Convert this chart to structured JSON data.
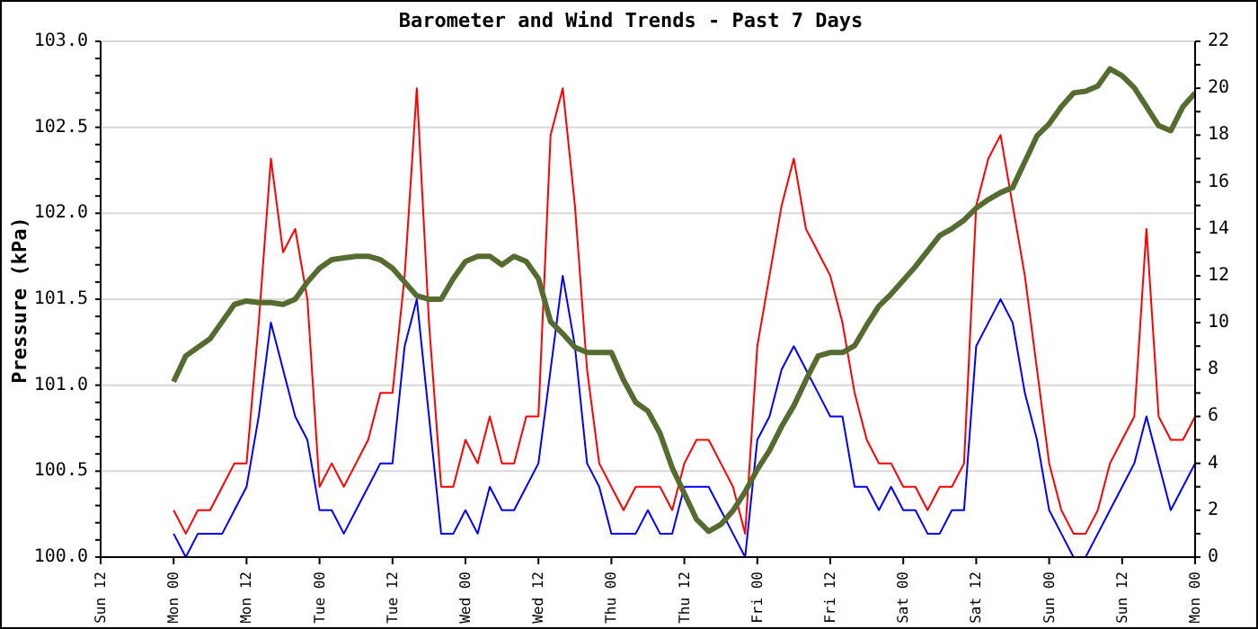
{
  "chart_data": {
    "type": "line",
    "title": "Barometer and Wind Trends - Past 7 Days",
    "ylabel": "Pressure (kPa)",
    "categories": [
      "Sun 12",
      null,
      null,
      null,
      null,
      null,
      "Mon 00",
      null,
      null,
      null,
      null,
      null,
      "Mon 12",
      null,
      null,
      null,
      null,
      null,
      "Tue 00",
      null,
      null,
      null,
      null,
      null,
      "Tue 12",
      null,
      null,
      null,
      null,
      null,
      "Wed 00",
      null,
      null,
      null,
      null,
      null,
      "Wed 12",
      null,
      null,
      null,
      null,
      null,
      "Thu 00",
      null,
      null,
      null,
      null,
      null,
      "Thu 12",
      null,
      null,
      null,
      null,
      null,
      "Fri 00",
      null,
      null,
      null,
      null,
      null,
      "Fri 12",
      null,
      null,
      null,
      null,
      null,
      "Sat 00",
      null,
      null,
      null,
      null,
      null,
      "Sat 12",
      null,
      null,
      null,
      null,
      null,
      "Sun 00",
      null,
      null,
      null,
      null,
      null,
      "Sun 12",
      null,
      null,
      null,
      null,
      null,
      "Mon 00"
    ],
    "ylim": [
      100,
      103
    ],
    "yticks": [
      {
        "value": 100,
        "label": "100.0"
      },
      {
        "value": 100.1,
        "label": null
      },
      {
        "value": 100.2,
        "label": null
      },
      {
        "value": 100.3,
        "label": null
      },
      {
        "value": 100.4,
        "label": null
      },
      100.5,
      {
        "value": 100.6,
        "label": null
      },
      {
        "value": 100.7,
        "label": null
      },
      {
        "value": 100.8,
        "label": null
      },
      {
        "value": 100.9,
        "label": null
      },
      {
        "value": 101,
        "label": "101.0"
      },
      {
        "value": 101.1,
        "label": null
      },
      {
        "value": 101.2,
        "label": null
      },
      {
        "value": 101.3,
        "label": null
      },
      {
        "value": 101.4,
        "label": null
      },
      101.5,
      {
        "value": 101.6,
        "label": null
      },
      {
        "value": 101.7,
        "label": null
      },
      {
        "value": 101.8,
        "label": null
      },
      {
        "value": 101.9,
        "label": null
      },
      {
        "value": 102,
        "label": "102.0"
      },
      {
        "value": 102.1,
        "label": null
      },
      {
        "value": 102.2,
        "label": null
      },
      {
        "value": 102.3,
        "label": null
      },
      {
        "value": 102.4,
        "label": null
      },
      102.5,
      {
        "value": 102.6,
        "label": null
      },
      {
        "value": 102.7,
        "label": null
      },
      {
        "value": 102.8,
        "label": null
      },
      {
        "value": 102.9,
        "label": null
      },
      {
        "value": 103,
        "label": "103.0"
      }
    ],
    "y2lim": [
      0,
      22
    ],
    "y2ticks": [
      0,
      {
        "value": 1,
        "label": null
      },
      2,
      {
        "value": 3,
        "label": null
      },
      4,
      {
        "value": 5,
        "label": null
      },
      6,
      {
        "value": 7,
        "label": null
      },
      8,
      {
        "value": 9,
        "label": null
      },
      10,
      {
        "value": 11,
        "label": null
      },
      12,
      {
        "value": 13,
        "label": null
      },
      14,
      {
        "value": 15,
        "label": null
      },
      16,
      {
        "value": 17,
        "label": null
      },
      18,
      {
        "value": 19,
        "label": null
      },
      20,
      {
        "value": 21,
        "label": null
      },
      22
    ],
    "grid": "y",
    "marker": "none",
    "line_style": "solid",
    "series": [
      {
        "color": "#ff0000",
        "axis": "y2",
        "values": [
          null,
          null,
          null,
          null,
          null,
          null,
          2,
          1,
          2,
          2,
          3,
          4,
          4,
          10,
          17,
          13,
          14,
          11,
          3,
          4,
          3,
          4,
          5,
          7,
          7,
          12,
          20,
          10,
          3,
          3,
          5,
          4,
          6,
          4,
          4,
          6,
          6,
          18,
          20,
          15,
          8,
          4,
          3,
          2,
          3,
          3,
          3,
          2,
          4,
          5,
          5,
          4,
          3,
          1,
          9,
          12,
          15,
          17,
          14,
          13,
          12,
          10,
          7,
          5,
          4,
          4,
          3,
          3,
          2,
          3,
          3,
          4,
          15,
          17,
          18,
          15,
          12,
          8,
          4,
          2,
          1,
          1,
          2,
          4,
          5,
          6,
          14,
          6,
          5,
          5,
          6
        ]
      },
      {
        "color": "#0000ff",
        "axis": "y2",
        "values": [
          null,
          null,
          null,
          null,
          null,
          null,
          1,
          0,
          1,
          1,
          1,
          2,
          3,
          6,
          10,
          8,
          6,
          5,
          2,
          2,
          1,
          2,
          3,
          4,
          4,
          9,
          11,
          6,
          1,
          1,
          2,
          1,
          3,
          2,
          2,
          3,
          4,
          8,
          12,
          9,
          4,
          3,
          1,
          1,
          1,
          2,
          1,
          1,
          3,
          3,
          3,
          2,
          1,
          0,
          5,
          6,
          8,
          9,
          8,
          7,
          6,
          6,
          3,
          3,
          2,
          3,
          2,
          2,
          1,
          1,
          2,
          2,
          9,
          10,
          11,
          10,
          7,
          5,
          2,
          1,
          0,
          0,
          1,
          2,
          3,
          4,
          6,
          4,
          2,
          3,
          4
        ]
      },
      {
        "color": "#556b2f",
        "values": [
          null,
          null,
          null,
          null,
          null,
          null,
          101.02,
          101.17,
          101.22,
          101.27,
          101.37,
          101.47,
          101.49,
          101.48,
          101.48,
          101.47,
          101.5,
          101.6,
          101.68,
          101.73,
          101.74,
          101.75,
          101.75,
          101.73,
          101.68,
          101.6,
          101.52,
          101.5,
          101.5,
          101.62,
          101.72,
          101.75,
          101.75,
          101.7,
          101.75,
          101.72,
          101.62,
          101.37,
          101.3,
          101.22,
          101.19,
          101.19,
          101.19,
          101.03,
          100.9,
          100.85,
          100.72,
          100.52,
          100.37,
          100.22,
          100.15,
          100.19,
          100.27,
          100.38,
          100.51,
          100.62,
          100.76,
          100.88,
          101.03,
          101.17,
          101.19,
          101.19,
          101.23,
          101.35,
          101.46,
          101.53,
          101.61,
          101.69,
          101.78,
          101.87,
          101.91,
          101.96,
          102.03,
          102.08,
          102.12,
          102.15,
          102.3,
          102.45,
          102.52,
          102.62,
          102.7,
          102.71,
          102.74,
          102.84,
          102.8,
          102.73,
          102.62,
          102.51,
          102.48,
          102.62,
          102.7
        ]
      }
    ]
  }
}
